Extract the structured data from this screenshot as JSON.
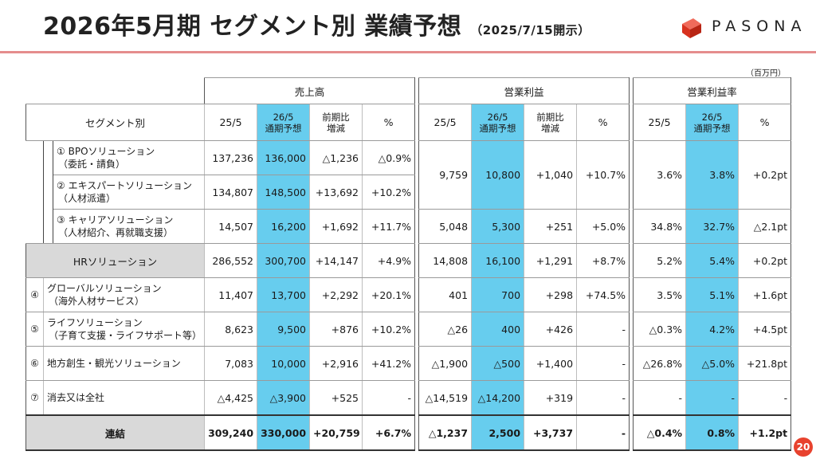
{
  "header": {
    "title": "2026年5月期 セグメント別 業績予想",
    "subtitle": "（2025/7/15開示）",
    "brand": "PASONA",
    "brand_color": "#e8422e",
    "unit": "（百万円）"
  },
  "table": {
    "groups": {
      "sales": "売上高",
      "op_profit": "営業利益",
      "op_margin": "営業利益率"
    },
    "segment_header": "セグメント別",
    "col_headers": {
      "prev": "25/5",
      "fc_line1": "26/5",
      "fc_line2": "通期予想",
      "yoy_line1": "前期比",
      "yoy_line2": "増減",
      "pct": "%"
    },
    "rows": [
      {
        "idx": "①",
        "name1": "BPOソリューション",
        "name2": "（委託・請負）",
        "s25": "137,236",
        "s26": "136,000",
        "sdiff": "△1,236",
        "spct": "△0.9%"
      },
      {
        "idx": "②",
        "name1": "エキスパートソリューション",
        "name2": "（人材派遣）",
        "s25": "134,807",
        "s26": "148,500",
        "sdiff": "+13,692",
        "spct": "+10.2%"
      },
      {
        "idx": "③",
        "name1": "キャリアソリューション",
        "name2": "（人材紹介、再就職支援）",
        "s25": "14,507",
        "s26": "16,200",
        "sdiff": "+1,692",
        "spct": "+11.7%",
        "o25": "5,048",
        "o26": "5,300",
        "odiff": "+251",
        "opct": "+5.0%",
        "m25": "34.8%",
        "m26": "32.7%",
        "mdiff": "△2.1pt"
      },
      {
        "name1": "HRソリューション",
        "s25": "286,552",
        "s26": "300,700",
        "sdiff": "+14,147",
        "spct": "+4.9%",
        "o25": "14,808",
        "o26": "16,100",
        "odiff": "+1,291",
        "opct": "+8.7%",
        "m25": "5.2%",
        "m26": "5.4%",
        "mdiff": "+0.2pt"
      },
      {
        "idx": "④",
        "name1": "グローバルソリューション",
        "name2": "（海外人材サービス）",
        "s25": "11,407",
        "s26": "13,700",
        "sdiff": "+2,292",
        "spct": "+20.1%",
        "o25": "401",
        "o26": "700",
        "odiff": "+298",
        "opct": "+74.5%",
        "m25": "3.5%",
        "m26": "5.1%",
        "mdiff": "+1.6pt"
      },
      {
        "idx": "⑤",
        "name1": "ライフソリューション",
        "name2": "（子育て支援・ライフサポート等）",
        "s25": "8,623",
        "s26": "9,500",
        "sdiff": "+876",
        "spct": "+10.2%",
        "o25": "△26",
        "o26": "400",
        "odiff": "+426",
        "opct": "-",
        "m25": "△0.3%",
        "m26": "4.2%",
        "mdiff": "+4.5pt"
      },
      {
        "idx": "⑥",
        "name1": "地方創生・観光ソリューション",
        "s25": "7,083",
        "s26": "10,000",
        "sdiff": "+2,916",
        "spct": "+41.2%",
        "o25": "△1,900",
        "o26": "△500",
        "odiff": "+1,400",
        "opct": "-",
        "m25": "△26.8%",
        "m26": "△5.0%",
        "mdiff": "+21.8pt"
      },
      {
        "idx": "⑦",
        "name1": "消去又は全社",
        "s25": "△4,425",
        "s26": "△3,900",
        "sdiff": "+525",
        "spct": "-",
        "o25": "△14,519",
        "o26": "△14,200",
        "odiff": "+319",
        "opct": "-",
        "m25": "-",
        "m26": "-",
        "mdiff": "-"
      },
      {
        "name1": "連結",
        "s25": "309,240",
        "s26": "330,000",
        "sdiff": "+20,759",
        "spct": "+6.7%",
        "o25": "△1,237",
        "o26": "2,500",
        "odiff": "+3,737",
        "opct": "-",
        "m25": "△0.4%",
        "m26": "0.8%",
        "mdiff": "+1.2pt"
      }
    ],
    "merged_bpo_expert": {
      "o25": "9,759",
      "o26": "10,800",
      "odiff": "+1,040",
      "opct": "+10.7%",
      "m25": "3.6%",
      "m26": "3.8%",
      "mdiff": "+0.2pt"
    }
  },
  "page_number": "20"
}
